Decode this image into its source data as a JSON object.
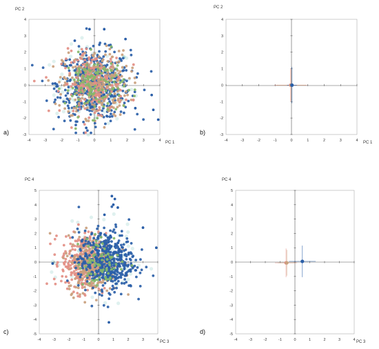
{
  "colors": {
    "blue": "#2b5fa8",
    "pink": "#e38f86",
    "tan": "#c9a07d",
    "green": "#86b86a",
    "teal": "#4fb3a8"
  },
  "chart_data": [
    {
      "panel": "a)",
      "type": "scatter",
      "xlabel": "PC 1",
      "ylabel": "PC 2",
      "xlim": [
        -4,
        4
      ],
      "ylim": [
        -3,
        4
      ],
      "x_ticks": [
        -4,
        -3,
        -2,
        -1,
        0,
        1,
        2,
        3,
        4
      ],
      "y_ticks": [
        -3,
        -2,
        -1,
        0,
        1,
        2,
        3,
        4
      ],
      "series": [
        {
          "color": "#2b5fa8",
          "center": [
            0,
            0
          ],
          "spread": [
            1.1,
            1.05
          ],
          "n": 520
        },
        {
          "color": "#c9a07d",
          "center": [
            0.1,
            0.05
          ],
          "spread": [
            1.0,
            1.0
          ],
          "n": 300
        },
        {
          "color": "#e38f86",
          "center": [
            -0.1,
            0.1
          ],
          "spread": [
            0.95,
            0.95
          ],
          "n": 160
        },
        {
          "color": "#86b86a",
          "center": [
            0,
            0
          ],
          "spread": [
            0.9,
            0.9
          ],
          "n": 120
        }
      ],
      "outliers": [
        [
          3.9,
          -2.1
        ],
        [
          3.5,
          -0.6
        ],
        [
          3.6,
          -1.5
        ],
        [
          -0.3,
          3.4
        ],
        [
          0.6,
          3.4
        ],
        [
          -1.2,
          2.7
        ],
        [
          2.5,
          -1.4
        ],
        [
          1.9,
          2.8
        ],
        [
          -2.4,
          0.1
        ],
        [
          -0.5,
          -2.6
        ]
      ]
    },
    {
      "panel": "b)",
      "type": "scatter",
      "xlabel": "PC 1",
      "ylabel": "PC 2",
      "xlim": [
        -4,
        4
      ],
      "ylim": [
        -3,
        4
      ],
      "x_ticks": [
        -4,
        -3,
        -2,
        -1,
        0,
        1,
        2,
        3,
        4
      ],
      "y_ticks": [
        -3,
        -2,
        -1,
        0,
        1,
        2,
        3,
        4
      ],
      "means": [
        {
          "color": "#e38f86",
          "x": -0.05,
          "y": 0.0,
          "xerr": 1.0,
          "yerr": 1.0
        },
        {
          "color": "#c9a07d",
          "x": -0.02,
          "y": 0.0,
          "xerr": 0.9,
          "yerr": 0.95
        },
        {
          "color": "#2b5fa8",
          "x": 0.03,
          "y": 0.0,
          "xerr": 0.3,
          "yerr": 1.1
        }
      ]
    },
    {
      "panel": "c)",
      "type": "scatter",
      "xlabel": "PC 3",
      "ylabel": "PC 4",
      "xlim": [
        -4,
        4
      ],
      "ylim": [
        -5,
        5
      ],
      "x_ticks": [
        -4,
        -3,
        -2,
        -1,
        0,
        1,
        2,
        3,
        4
      ],
      "y_ticks": [
        -5,
        -4,
        -3,
        -2,
        -1,
        0,
        1,
        2,
        3,
        4,
        5
      ],
      "series": [
        {
          "color": "#e38f86",
          "center": [
            -1.0,
            0.0
          ],
          "spread": [
            0.75,
            1.0
          ],
          "n": 330
        },
        {
          "color": "#c9a07d",
          "center": [
            -0.4,
            -0.1
          ],
          "spread": [
            0.85,
            1.0
          ],
          "n": 260
        },
        {
          "color": "#2b5fa8",
          "center": [
            0.55,
            0.1
          ],
          "spread": [
            0.95,
            1.05
          ],
          "n": 480
        },
        {
          "color": "#86b86a",
          "center": [
            0.2,
            0.0
          ],
          "spread": [
            0.8,
            0.9
          ],
          "n": 70
        }
      ],
      "outliers": [
        [
          0.7,
          -4.2
        ],
        [
          0.9,
          4.6
        ],
        [
          1.1,
          4.4
        ],
        [
          3.9,
          1.0
        ],
        [
          3.0,
          2.4
        ],
        [
          -3.1,
          -0.1
        ],
        [
          1.3,
          3.8
        ],
        [
          1.0,
          4.0
        ],
        [
          0.4,
          3.3
        ]
      ]
    },
    {
      "panel": "d)",
      "type": "scatter",
      "xlabel": "PC 3",
      "ylabel": "PC 4",
      "xlim": [
        -4,
        4
      ],
      "ylim": [
        -5,
        5
      ],
      "x_ticks": [
        -4,
        -3,
        -2,
        -1,
        0,
        1,
        2,
        3,
        4
      ],
      "y_ticks": [
        -5,
        -4,
        -3,
        -2,
        -1,
        0,
        1,
        2,
        3,
        4,
        5
      ],
      "means": [
        {
          "color": "#e38f86",
          "x": -0.6,
          "y": -0.05,
          "xerr": 0.75,
          "yerr": 1.0
        },
        {
          "color": "#c9a07d",
          "x": -0.55,
          "y": -0.05,
          "xerr": 0.6,
          "yerr": 0.9
        },
        {
          "color": "#2b5fa8",
          "x": 0.5,
          "y": 0.05,
          "xerr": 0.9,
          "yerr": 1.1
        }
      ]
    }
  ]
}
